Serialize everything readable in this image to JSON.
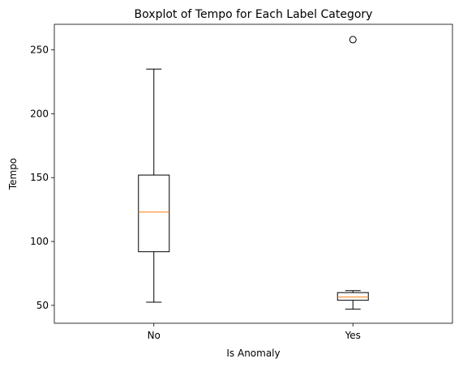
{
  "chart_data": {
    "type": "box",
    "title": "Boxplot of Tempo for Each Label Category",
    "xlabel": "Is Anomaly",
    "ylabel": "Tempo",
    "ylim": [
      36,
      270
    ],
    "yticks": [
      50,
      100,
      150,
      200,
      250
    ],
    "categories": [
      "No",
      "Yes"
    ],
    "series": [
      {
        "category": "No",
        "whisker_low": 52.5,
        "q1": 92,
        "median": 123,
        "q3": 152,
        "whisker_high": 235,
        "outliers": []
      },
      {
        "category": "Yes",
        "whisker_low": 47,
        "q1": 54,
        "median": 56.5,
        "q3": 60,
        "whisker_high": 61.5,
        "outliers": [
          258
        ]
      }
    ],
    "grid": false,
    "colors": {
      "box": "#000000",
      "median": "#ff7f0e",
      "outlier": "#000000"
    }
  }
}
